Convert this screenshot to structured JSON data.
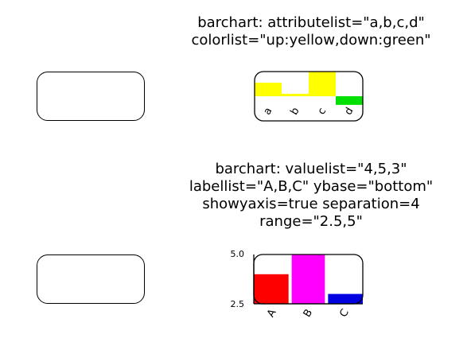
{
  "chart1": {
    "caption": [
      "barchart: attributelist=\"a,b,c,d\"",
      "colorlist=\"up:yellow,down:green\""
    ],
    "chart_data": {
      "type": "bar",
      "categories": [
        "a",
        "b",
        "c",
        "d"
      ],
      "values": [
        0.55,
        0.1,
        1.0,
        -0.35
      ],
      "bar_colors": [
        "#ffff00",
        "#ffff00",
        "#ffff00",
        "#00e000"
      ],
      "colors": {
        "up": "#ffff00",
        "down": "#00e000"
      }
    }
  },
  "chart2": {
    "caption": [
      "barchart: valuelist=\"4,5,3\"",
      "labellist=\"A,B,C\" ybase=\"bottom\"",
      "showyaxis=true separation=4",
      "range=\"2.5,5\""
    ],
    "chart_data": {
      "type": "bar",
      "categories": [
        "A",
        "B",
        "C"
      ],
      "values": [
        4,
        5,
        3
      ],
      "bar_colors": [
        "#ff0000",
        "#ff00ff",
        "#0000e0"
      ],
      "ylim": [
        2.5,
        5
      ],
      "yticks": [
        "5.0",
        "2.5"
      ]
    }
  }
}
